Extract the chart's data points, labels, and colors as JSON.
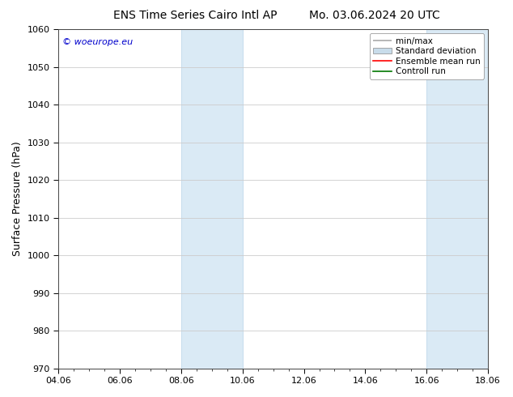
{
  "title_left": "ENS Time Series Cairo Intl AP",
  "title_right": "Mo. 03.06.2024 20 UTC",
  "ylabel": "Surface Pressure (hPa)",
  "ylim": [
    970,
    1060
  ],
  "yticks": [
    970,
    980,
    990,
    1000,
    1010,
    1020,
    1030,
    1040,
    1050,
    1060
  ],
  "xtick_labels": [
    "04.06",
    "06.06",
    "08.06",
    "10.06",
    "12.06",
    "14.06",
    "16.06",
    "18.06"
  ],
  "xtick_positions": [
    0,
    2,
    4,
    6,
    8,
    10,
    12,
    14
  ],
  "xlim": [
    0,
    14
  ],
  "shaded_bands": [
    {
      "x_start": 4,
      "x_end": 6
    },
    {
      "x_start": 12,
      "x_end": 14
    }
  ],
  "band_color": "#daeaf5",
  "band_edge_color": "#b8d4e8",
  "watermark_text": "© woeurope.eu",
  "watermark_color": "#0000cc",
  "legend_entries": [
    {
      "label": "min/max"
    },
    {
      "label": "Standard deviation"
    },
    {
      "label": "Ensemble mean run"
    },
    {
      "label": "Controll run"
    }
  ],
  "legend_colors": [
    "#aaaaaa",
    "#c8dcea",
    "#ff0000",
    "#007700"
  ],
  "background_color": "#ffffff",
  "grid_color": "#cccccc",
  "title_fontsize": 10,
  "tick_fontsize": 8,
  "label_fontsize": 9,
  "legend_fontsize": 7.5
}
